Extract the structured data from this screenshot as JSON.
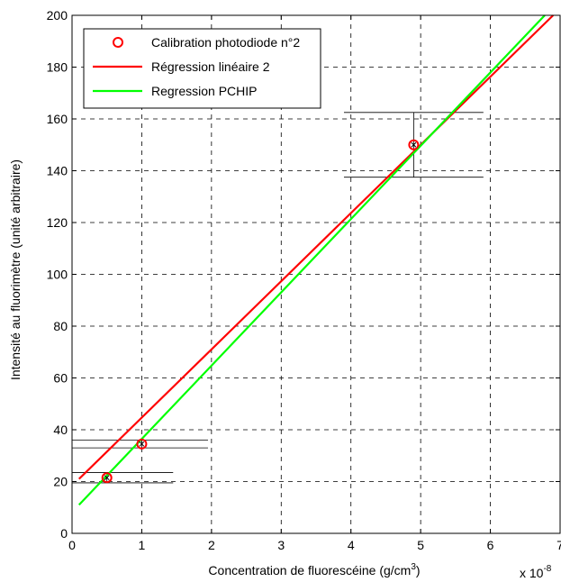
{
  "chart_data": {
    "type": "line",
    "xlabel": "Concentration de fluorescéine (g/cm",
    "xlabel_sup": "3",
    "xlabel_close": ")",
    "x_multiplier": "x 10",
    "x_multiplier_exp": "-8",
    "ylabel": "Intensité au fluorimètre (unité arbitraire)",
    "xlim": [
      0,
      7
    ],
    "ylim": [
      0,
      200
    ],
    "x_ticks": [
      0,
      1,
      2,
      3,
      4,
      5,
      6,
      7
    ],
    "y_ticks": [
      0,
      20,
      40,
      60,
      80,
      100,
      120,
      140,
      160,
      180,
      200
    ],
    "grid": true,
    "legend_position": "top-left",
    "series": [
      {
        "name": "Calibration photodiode n°2",
        "kind": "scatter",
        "color": "#ff0000",
        "x": [
          0.5,
          1.0,
          4.9
        ],
        "y": [
          21.5,
          34.5,
          150
        ]
      },
      {
        "name": "Régression linéaire 2",
        "kind": "line",
        "color": "#ff0000",
        "x": [
          0.1,
          6.9
        ],
        "y": [
          21,
          200
        ]
      },
      {
        "name": "Regression PCHIP",
        "kind": "line",
        "color": "#00ff00",
        "x": [
          0.1,
          6.78
        ],
        "y": [
          11,
          200
        ]
      }
    ],
    "error_bars": [
      {
        "x": 0.5,
        "y_low": 19.5,
        "y_high": 23.5,
        "x_low": 0.0,
        "x_high": 1.45
      },
      {
        "x": 1.0,
        "y_low": 33.0,
        "y_high": 36.0,
        "x_low": 0.0,
        "x_high": 1.95
      },
      {
        "x": 4.9,
        "y_low": 137.5,
        "y_high": 162.5,
        "x_low": 3.9,
        "x_high": 5.9
      }
    ]
  }
}
